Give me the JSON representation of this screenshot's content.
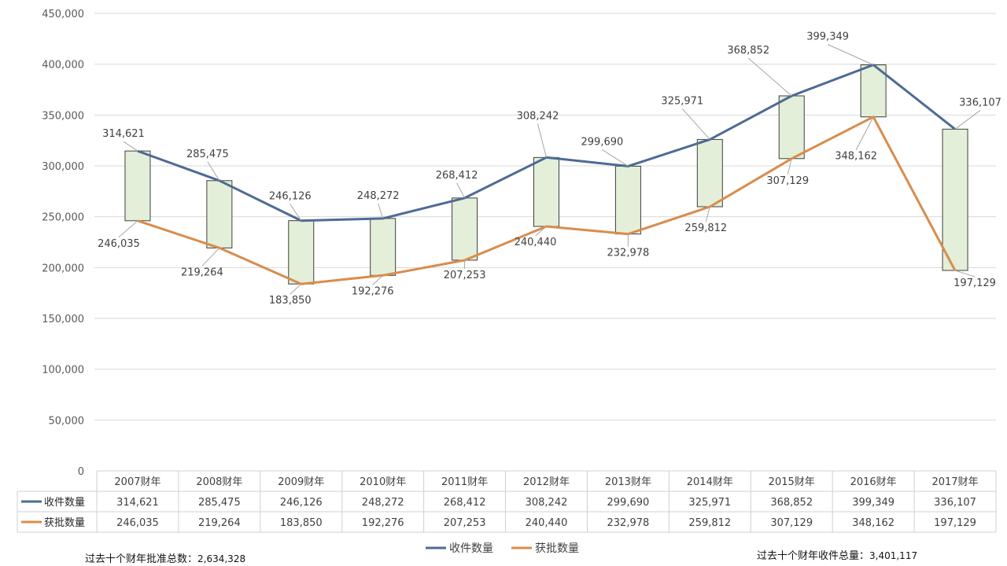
{
  "chart_data": {
    "type": "line",
    "categories": [
      "2007财年",
      "2008财年",
      "2009财年",
      "2010财年",
      "2011财年",
      "2012财年",
      "2013财年",
      "2014财年",
      "2015财年",
      "2016财年",
      "2017财年"
    ],
    "series": [
      {
        "name": "收件数量",
        "color": "#4e6b94",
        "values": [
          314621,
          285475,
          246126,
          248272,
          268412,
          308242,
          299690,
          325971,
          368852,
          399349,
          336107
        ]
      },
      {
        "name": "获批数量",
        "color": "#d98c4c",
        "values": [
          246035,
          219264,
          183850,
          192276,
          207253,
          240440,
          232978,
          259812,
          307129,
          348162,
          197129
        ]
      }
    ],
    "up_down_bars": {
      "fill": "#e3efd8",
      "stroke": "#3f3f3f"
    },
    "ylim": [
      0,
      450000
    ],
    "yticks": [
      0,
      50000,
      100000,
      150000,
      200000,
      250000,
      300000,
      350000,
      400000,
      450000
    ],
    "ytick_labels": [
      "0",
      "50,000",
      "100,000",
      "150,000",
      "200,000",
      "250,000",
      "300,000",
      "350,000",
      "400,000",
      "450,000"
    ],
    "grid": true,
    "legend": "bottom",
    "data_table": true
  },
  "notes": {
    "left_label": "过去十个财年批准总数：",
    "left_value": "2,634,328",
    "right_label": "过去十个财年收件总量：",
    "right_value": "3,401,117"
  }
}
